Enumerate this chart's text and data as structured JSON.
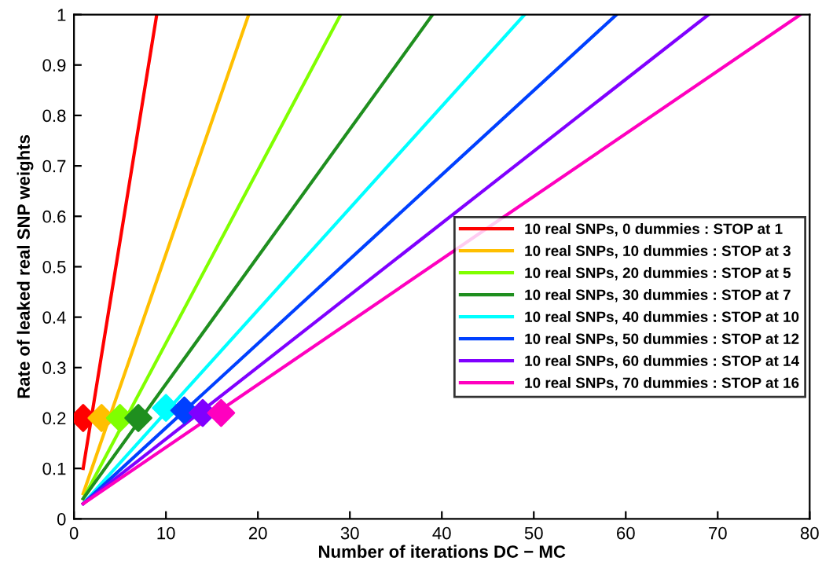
{
  "chart_data": {
    "type": "line",
    "xlabel": "Number of iterations DC − MC",
    "ylabel": "Rate of leaked real SNP weights",
    "xlim": [
      0,
      80
    ],
    "xticks": [
      0,
      10,
      20,
      30,
      40,
      50,
      60,
      70,
      80
    ],
    "ylim": [
      0,
      1
    ],
    "yticks": [
      0,
      0.1,
      0.2,
      0.3,
      0.4,
      0.5,
      0.6,
      0.7,
      0.8,
      0.9,
      1
    ],
    "grid": false,
    "legend": "right",
    "marker": "none",
    "line_style": "solid",
    "series": [
      {
        "name": "10 real SNPs, 0 dummies : STOP at 1",
        "color": "#ff0000",
        "x": [
          1,
          9
        ],
        "values": [
          0.1,
          1
        ]
      },
      {
        "name": "10 real SNPs, 10 dummies : STOP at 3",
        "color": "#ffbf00",
        "x": [
          1,
          19
        ],
        "values": [
          0.05,
          1
        ]
      },
      {
        "name": "10 real SNPs, 20 dummies : STOP at 5",
        "color": "#80ff00",
        "x": [
          1,
          29
        ],
        "values": [
          0.04,
          1
        ]
      },
      {
        "name": "10 real SNPs, 30 dummies : STOP at 7",
        "color": "#1f8f1f",
        "x": [
          1,
          39
        ],
        "values": [
          0.04,
          1
        ]
      },
      {
        "name": "10 real SNPs, 40 dummies : STOP at 10",
        "color": "#00ffff",
        "x": [
          1,
          49
        ],
        "values": [
          0.03,
          1
        ]
      },
      {
        "name": "10 real SNPs, 50 dummies : STOP at 12",
        "color": "#0040ff",
        "x": [
          1,
          59
        ],
        "values": [
          0.03,
          1
        ]
      },
      {
        "name": "10 real SNPs, 60 dummies : STOP at 14",
        "color": "#8000ff",
        "x": [
          1,
          69
        ],
        "values": [
          0.03,
          1
        ]
      },
      {
        "name": "10 real SNPs, 70 dummies : STOP at 16",
        "color": "#ff00bf",
        "x": [
          1,
          79
        ],
        "values": [
          0.03,
          1
        ]
      },
      {
        "type": "scatter",
        "marker": "diamond",
        "x": [
          1,
          3,
          5,
          7,
          10,
          12,
          14,
          16
        ],
        "values": [
          0.2,
          0.2,
          0.2,
          0.2,
          0.22,
          0.215,
          0.21,
          0.21
        ],
        "colors": [
          "#ff0000",
          "#ffbf00",
          "#80ff00",
          "#1f8f1f",
          "#00ffff",
          "#0040ff",
          "#8000ff",
          "#ff00bf"
        ]
      }
    ]
  }
}
